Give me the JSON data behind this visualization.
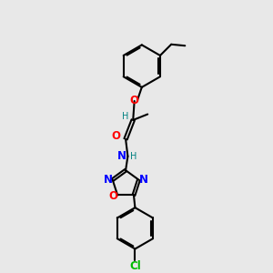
{
  "background_color": "#e8e8e8",
  "bond_color": "#000000",
  "atom_colors": {
    "O": "#ff0000",
    "N": "#0000ff",
    "Cl": "#00bb00",
    "H": "#008080",
    "C": "#000000"
  },
  "figsize": [
    3.0,
    3.0
  ],
  "dpi": 100
}
